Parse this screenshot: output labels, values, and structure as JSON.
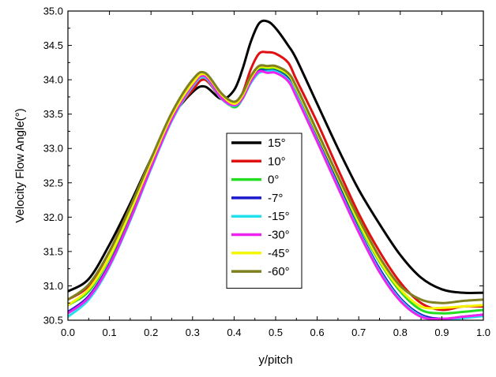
{
  "chart_data": {
    "type": "line",
    "title": "",
    "xlabel": "y/pitch",
    "ylabel": "Velocity Flow Angle(°)",
    "xlim": [
      0.0,
      1.0
    ],
    "ylim": [
      30.5,
      35.0
    ],
    "x_ticks": [
      "0.0",
      "0.1",
      "0.2",
      "0.3",
      "0.4",
      "0.5",
      "0.6",
      "0.7",
      "0.8",
      "0.9",
      "1.0"
    ],
    "y_ticks": [
      "30.5",
      "31.0",
      "31.5",
      "32.0",
      "32.5",
      "33.0",
      "33.5",
      "34.0",
      "34.5",
      "35.0"
    ],
    "grid": false,
    "legend_position": "center",
    "series": [
      {
        "name": "15°",
        "color": "#000000",
        "x": [
          0,
          0.05,
          0.1,
          0.15,
          0.2,
          0.25,
          0.3,
          0.33,
          0.37,
          0.4,
          0.42,
          0.44,
          0.46,
          0.48,
          0.5,
          0.53,
          0.55,
          0.6,
          0.65,
          0.7,
          0.75,
          0.8,
          0.85,
          0.9,
          0.95,
          1.0
        ],
        "y": [
          30.92,
          31.1,
          31.6,
          32.2,
          32.85,
          33.45,
          33.82,
          33.9,
          33.72,
          33.85,
          34.15,
          34.55,
          34.82,
          34.85,
          34.75,
          34.5,
          34.3,
          33.65,
          33.0,
          32.4,
          31.9,
          31.45,
          31.12,
          30.95,
          30.9,
          30.9
        ]
      },
      {
        "name": "10°",
        "color": "#e01010",
        "x": [
          0,
          0.05,
          0.1,
          0.15,
          0.2,
          0.25,
          0.3,
          0.33,
          0.37,
          0.4,
          0.42,
          0.44,
          0.46,
          0.48,
          0.5,
          0.53,
          0.55,
          0.6,
          0.65,
          0.7,
          0.75,
          0.8,
          0.85,
          0.9,
          0.95,
          1.0
        ],
        "y": [
          30.8,
          31.0,
          31.5,
          32.15,
          32.8,
          33.45,
          33.85,
          34.0,
          33.72,
          33.62,
          33.8,
          34.15,
          34.38,
          34.4,
          34.38,
          34.25,
          34.0,
          33.38,
          32.7,
          32.05,
          31.5,
          31.05,
          30.75,
          30.65,
          30.7,
          30.7
        ]
      },
      {
        "name": "0°",
        "color": "#22dd22",
        "x": [
          0,
          0.05,
          0.1,
          0.15,
          0.2,
          0.25,
          0.3,
          0.33,
          0.37,
          0.4,
          0.42,
          0.44,
          0.46,
          0.48,
          0.5,
          0.53,
          0.55,
          0.6,
          0.65,
          0.7,
          0.75,
          0.8,
          0.85,
          0.9,
          0.95,
          1.0
        ],
        "y": [
          30.72,
          30.92,
          31.4,
          32.05,
          32.78,
          33.45,
          33.9,
          34.05,
          33.75,
          33.6,
          33.72,
          33.98,
          34.15,
          34.15,
          34.15,
          34.05,
          33.85,
          33.2,
          32.55,
          31.9,
          31.35,
          30.92,
          30.65,
          30.6,
          30.62,
          30.65
        ]
      },
      {
        "name": "-7°",
        "color": "#1a1acc",
        "x": [
          0,
          0.05,
          0.1,
          0.15,
          0.2,
          0.25,
          0.3,
          0.33,
          0.37,
          0.4,
          0.42,
          0.44,
          0.46,
          0.48,
          0.5,
          0.53,
          0.55,
          0.6,
          0.65,
          0.7,
          0.75,
          0.8,
          0.85,
          0.9,
          0.95,
          1.0
        ],
        "y": [
          30.62,
          30.85,
          31.32,
          31.98,
          32.72,
          33.42,
          33.9,
          34.05,
          33.75,
          33.62,
          33.72,
          33.98,
          34.13,
          34.13,
          34.13,
          34.02,
          33.8,
          33.15,
          32.48,
          31.82,
          31.25,
          30.82,
          30.58,
          30.52,
          30.55,
          30.58
        ]
      },
      {
        "name": "-15°",
        "color": "#22e0ee",
        "x": [
          0,
          0.05,
          0.1,
          0.15,
          0.2,
          0.25,
          0.3,
          0.33,
          0.37,
          0.4,
          0.42,
          0.44,
          0.46,
          0.48,
          0.5,
          0.53,
          0.55,
          0.6,
          0.65,
          0.7,
          0.75,
          0.8,
          0.85,
          0.9,
          0.95,
          1.0
        ],
        "y": [
          30.55,
          30.8,
          31.28,
          31.95,
          32.7,
          33.4,
          33.9,
          34.03,
          33.72,
          33.62,
          33.72,
          33.95,
          34.1,
          34.12,
          34.12,
          34.0,
          33.78,
          33.12,
          32.45,
          31.8,
          31.22,
          30.8,
          30.56,
          30.5,
          30.53,
          30.56
        ]
      },
      {
        "name": "-30°",
        "color": "#ee22ee",
        "x": [
          0,
          0.05,
          0.1,
          0.15,
          0.2,
          0.25,
          0.3,
          0.33,
          0.37,
          0.4,
          0.42,
          0.44,
          0.46,
          0.48,
          0.5,
          0.53,
          0.55,
          0.6,
          0.65,
          0.7,
          0.75,
          0.8,
          0.85,
          0.9,
          0.95,
          1.0
        ],
        "y": [
          30.6,
          30.83,
          31.3,
          31.97,
          32.72,
          33.42,
          33.92,
          34.05,
          33.73,
          33.63,
          33.73,
          33.97,
          34.12,
          34.1,
          34.1,
          33.98,
          33.75,
          33.1,
          32.43,
          31.78,
          31.2,
          30.78,
          30.55,
          30.52,
          30.55,
          30.58
        ]
      },
      {
        "name": "-45°",
        "color": "#f5f500",
        "x": [
          0,
          0.05,
          0.1,
          0.15,
          0.2,
          0.25,
          0.3,
          0.33,
          0.37,
          0.4,
          0.42,
          0.44,
          0.46,
          0.48,
          0.5,
          0.53,
          0.55,
          0.6,
          0.65,
          0.7,
          0.75,
          0.8,
          0.85,
          0.9,
          0.95,
          1.0
        ],
        "y": [
          30.72,
          30.95,
          31.42,
          32.08,
          32.8,
          33.48,
          33.95,
          34.08,
          33.78,
          33.65,
          33.77,
          34.02,
          34.18,
          34.18,
          34.18,
          34.08,
          33.87,
          33.22,
          32.57,
          31.93,
          31.37,
          30.95,
          30.7,
          30.68,
          30.7,
          30.72
        ]
      },
      {
        "name": "-60°",
        "color": "#808020",
        "x": [
          0,
          0.05,
          0.1,
          0.15,
          0.2,
          0.25,
          0.3,
          0.33,
          0.37,
          0.4,
          0.42,
          0.44,
          0.46,
          0.48,
          0.5,
          0.53,
          0.55,
          0.6,
          0.65,
          0.7,
          0.75,
          0.8,
          0.85,
          0.9,
          0.95,
          1.0
        ],
        "y": [
          30.8,
          31.02,
          31.5,
          32.15,
          32.85,
          33.52,
          34.0,
          34.1,
          33.8,
          33.68,
          33.8,
          34.05,
          34.2,
          34.2,
          34.2,
          34.1,
          33.9,
          33.25,
          32.6,
          31.98,
          31.42,
          31.0,
          30.8,
          30.75,
          30.78,
          30.8
        ]
      }
    ]
  }
}
